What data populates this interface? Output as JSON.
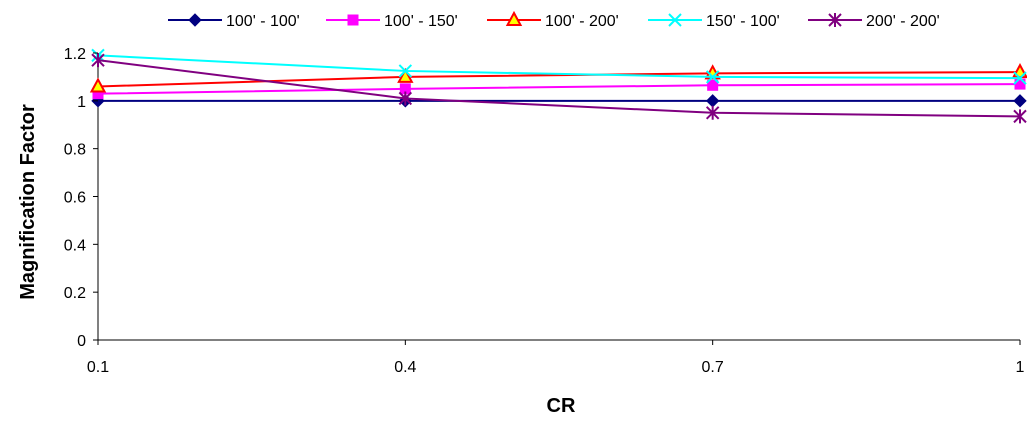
{
  "chart_data": {
    "type": "line",
    "title": "",
    "xlabel": "CR",
    "ylabel": "Magnification Factor",
    "categories": [
      "0.1",
      "0.4",
      "0.7",
      "1"
    ],
    "ylim": [
      0,
      1.2
    ],
    "yticks": [
      0,
      0.2,
      0.4,
      0.6,
      0.8,
      1,
      1.2
    ],
    "grid": false,
    "legend_position": "top",
    "series": [
      {
        "name": "100' - 100'",
        "color": "#000080",
        "marker": "diamond",
        "values": [
          1.0,
          1.0,
          1.0,
          1.0
        ]
      },
      {
        "name": "100' - 150'",
        "color": "#ff00ff",
        "marker": "square",
        "values": [
          1.03,
          1.05,
          1.065,
          1.07
        ]
      },
      {
        "name": "100' - 200'",
        "color": "#ff0000",
        "marker": "triangle",
        "values": [
          1.06,
          1.1,
          1.115,
          1.12
        ]
      },
      {
        "name": "150' - 100'",
        "color": "#00ffff",
        "marker": "x",
        "values": [
          1.19,
          1.125,
          1.1,
          1.095
        ]
      },
      {
        "name": "200' - 200'",
        "color": "#800080",
        "marker": "star",
        "values": [
          1.17,
          1.01,
          0.95,
          0.935
        ]
      }
    ]
  }
}
